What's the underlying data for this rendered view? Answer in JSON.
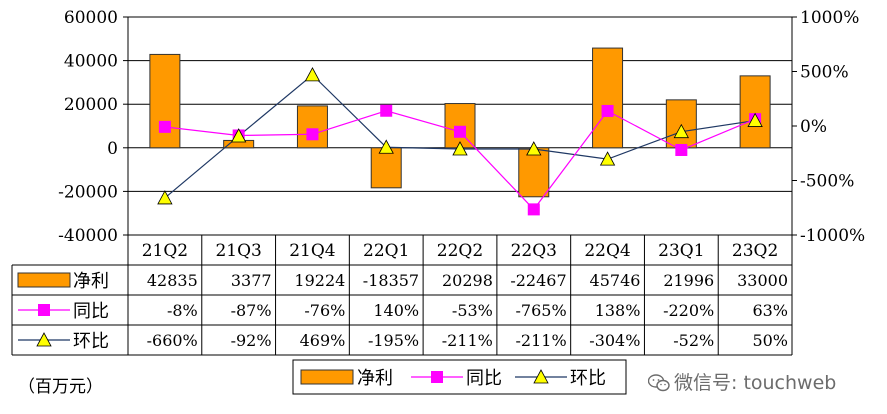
{
  "chart_data": {
    "type": "bar",
    "categories": [
      "21Q2",
      "21Q3",
      "21Q4",
      "22Q1",
      "22Q2",
      "22Q3",
      "22Q4",
      "23Q1",
      "23Q2"
    ],
    "series": [
      {
        "name": "净利",
        "type": "bar",
        "axis": "left",
        "values": [
          42835,
          3377,
          19224,
          -18357,
          20298,
          -22467,
          45746,
          21996,
          33000
        ],
        "labels": [
          "42835",
          "3377",
          "19224",
          "-18357",
          "20298",
          "-22467",
          "45746",
          "21996",
          "33000"
        ]
      },
      {
        "name": "同比",
        "type": "line",
        "axis": "right",
        "marker": "square",
        "values": [
          -8,
          -87,
          -76,
          140,
          -53,
          -765,
          138,
          -220,
          63
        ],
        "labels": [
          "-8%",
          "-87%",
          "-76%",
          "140%",
          "-53%",
          "-765%",
          "138%",
          "-220%",
          "63%"
        ]
      },
      {
        "name": "环比",
        "type": "line",
        "axis": "right",
        "marker": "triangle",
        "values": [
          -660,
          -92,
          469,
          -195,
          -211,
          -211,
          -304,
          -52,
          50
        ],
        "labels": [
          "-660%",
          "-92%",
          "469%",
          "-195%",
          "-211%",
          "-211%",
          "-304%",
          "-52%",
          "50%"
        ]
      }
    ],
    "left_axis": {
      "ylim": [
        -40000,
        60000
      ],
      "ticks": [
        "60000",
        "40000",
        "20000",
        "0",
        "-20000",
        "-40000"
      ]
    },
    "right_axis": {
      "ylim": [
        -1000,
        1000
      ],
      "ticks": [
        "1000%",
        "500%",
        "0%",
        "-500%",
        "-1000%"
      ]
    },
    "legend_position": "bottom-center",
    "grid": true
  },
  "unit_label": "（百万元）",
  "watermark": "微信号: touchweb",
  "colors": {
    "bar": "#ff9900",
    "bar_border": "#333333",
    "yoy": "#ff00ff",
    "qoq_line": "#1f3864",
    "qoq_marker": "#ffff00",
    "grid": "#000000"
  }
}
